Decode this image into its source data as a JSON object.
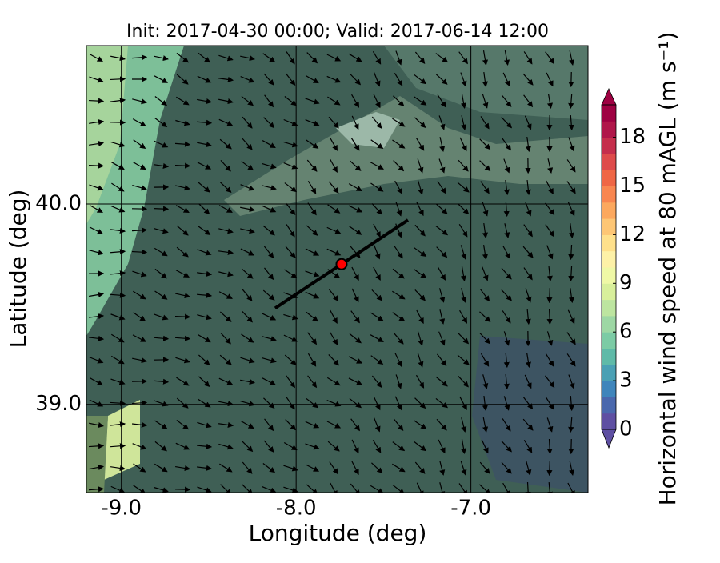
{
  "chart_data": {
    "type": "map",
    "title": "Init: 2017-04-30 00:00; Valid: 2017-06-14 12:00",
    "x_label": "Longitude (deg)",
    "y_label": "Latitude (deg)",
    "xlim": [
      -9.2,
      -6.33
    ],
    "ylim": [
      38.56,
      40.79
    ],
    "xticks": [
      {
        "value": -9,
        "label": "-9.0"
      },
      {
        "value": -8,
        "label": "-8.0"
      },
      {
        "value": -7,
        "label": "-7.0"
      }
    ],
    "yticks": [
      {
        "value": 39,
        "label": "39.0"
      },
      {
        "value": 40,
        "label": "40.0"
      }
    ],
    "grid": true,
    "transect": {
      "lon": [
        -8.12,
        -7.36
      ],
      "lat": [
        39.48,
        39.92
      ],
      "color": "#000000"
    },
    "site": {
      "lon": -7.74,
      "lat": 39.7,
      "color": "#ff0000"
    },
    "colorbar": {
      "label": "Horizontal wind speed at 80 mAGL (m s⁻¹)",
      "lim": [
        0,
        20
      ],
      "ticks": [
        0,
        3,
        6,
        9,
        12,
        15,
        18
      ],
      "colors": [
        "#5e4fa2",
        "#4a68ad",
        "#3f85bb",
        "#4aa0b4",
        "#5fbaa8",
        "#7ccba5",
        "#9dd7a4",
        "#bde5a0",
        "#d8ef9b",
        "#eff8a6",
        "#fdf1a7",
        "#fee08b",
        "#fdc675",
        "#fca85e",
        "#f88650",
        "#ef6645",
        "#de4b4b",
        "#c52e4c",
        "#b0164a",
        "#9e0142"
      ]
    }
  }
}
